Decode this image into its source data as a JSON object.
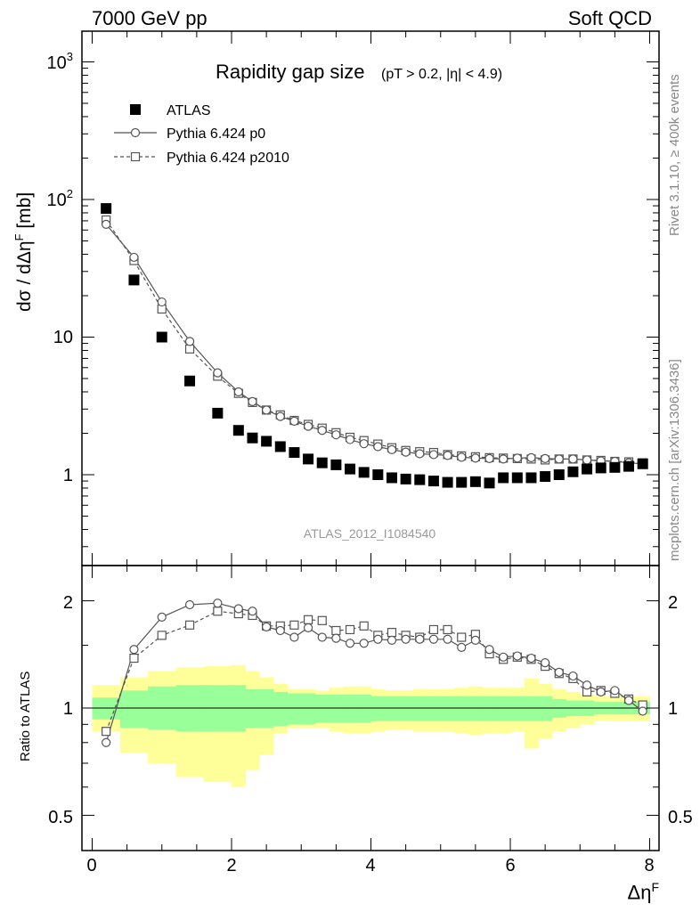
{
  "header": {
    "left": "7000 GeV pp",
    "right": "Soft QCD"
  },
  "side_texts": {
    "rivet": "Rivet 3.1.10, ≥ 400k events",
    "mcplots": "mcplots.cern.ch [arXiv:1306.3436]"
  },
  "chart_data": {
    "type": "scatter",
    "title_main": "Rapidity gap size",
    "title_cut": "(pT > 0.2, |η| < 4.9)",
    "analysis_label": "ATLAS_2012_I1084540",
    "ylabel": "dσ / dΔη",
    "ylabel_sup": "F",
    "ylabel_unit": " [mb]",
    "ratio_ylabel": "Ratio to ATLAS",
    "xlabel": "Δη",
    "xlabel_sup": "F",
    "xlim": [
      0,
      8
    ],
    "ylim": [
      0.2,
      1000
    ],
    "y_scale": "log",
    "ratio_ylim": [
      0.4,
      2.4
    ],
    "x_ticks": [
      "0",
      "2",
      "4",
      "6",
      "8"
    ],
    "y_ticks": [
      "1",
      "10"
    ],
    "y_tick_10e2_base": "10",
    "y_tick_10e2_exp": "2",
    "y_tick_10e3_base": "10",
    "y_tick_10e3_exp": "3",
    "ratio_y_ticks": [
      "0.5",
      "1",
      "2"
    ],
    "legend_position": "top-left",
    "legend": [
      "ATLAS",
      "Pythia 6.424 p0",
      "Pythia 6.424 p2010"
    ],
    "x": [
      0.2,
      0.6,
      1.0,
      1.4,
      1.8,
      2.1,
      2.3,
      2.5,
      2.7,
      2.9,
      3.1,
      3.3,
      3.5,
      3.7,
      3.9,
      4.1,
      4.3,
      4.5,
      4.7,
      4.9,
      5.1,
      5.3,
      5.5,
      5.7,
      5.9,
      6.1,
      6.3,
      6.5,
      6.7,
      6.9,
      7.1,
      7.3,
      7.5,
      7.7,
      7.9
    ],
    "series": [
      {
        "name": "ATLAS",
        "style": "black filled square",
        "values": [
          86,
          26,
          10,
          4.8,
          2.8,
          2.1,
          1.85,
          1.75,
          1.6,
          1.45,
          1.3,
          1.22,
          1.18,
          1.1,
          1.04,
          1.0,
          0.95,
          0.93,
          0.92,
          0.9,
          0.88,
          0.88,
          0.89,
          0.87,
          0.95,
          0.95,
          0.95,
          0.97,
          1.0,
          1.05,
          1.1,
          1.12,
          1.13,
          1.15,
          1.2
        ]
      },
      {
        "name": "Pythia 6.424 p0",
        "style": "solid line, open circle",
        "values": [
          66,
          38,
          18,
          9.3,
          5.5,
          4.0,
          3.4,
          2.95,
          2.65,
          2.45,
          2.25,
          2.1,
          1.95,
          1.8,
          1.68,
          1.6,
          1.52,
          1.46,
          1.42,
          1.4,
          1.38,
          1.34,
          1.32,
          1.31,
          1.3,
          1.32,
          1.33,
          1.31,
          1.3,
          1.3,
          1.28,
          1.26,
          1.25,
          1.22,
          1.2
        ]
      },
      {
        "name": "Pythia 6.424 p2010",
        "style": "dashed line, open square",
        "values": [
          71,
          36,
          16,
          8.2,
          5.2,
          3.9,
          3.35,
          2.95,
          2.72,
          2.48,
          2.32,
          2.18,
          2.02,
          1.87,
          1.77,
          1.67,
          1.57,
          1.5,
          1.47,
          1.45,
          1.4,
          1.37,
          1.35,
          1.33,
          1.32,
          1.31,
          1.3,
          1.28,
          1.3,
          1.3,
          1.28,
          1.27,
          1.25,
          1.24,
          1.22
        ]
      }
    ],
    "ratio": [
      {
        "name": "Pythia 6.424 p0",
        "values": [
          0.8,
          1.46,
          1.8,
          1.95,
          1.97,
          1.9,
          1.87,
          1.69,
          1.65,
          1.58,
          1.68,
          1.58,
          1.57,
          1.52,
          1.52,
          1.56,
          1.55,
          1.56,
          1.56,
          1.56,
          1.56,
          1.48,
          1.55,
          1.46,
          1.39,
          1.4,
          1.38,
          1.34,
          1.26,
          1.23,
          1.16,
          1.11,
          1.12,
          1.05,
          0.98
        ]
      },
      {
        "name": "Pythia 6.424 p2010",
        "values": [
          0.86,
          1.38,
          1.6,
          1.71,
          1.87,
          1.84,
          1.82,
          1.7,
          1.7,
          1.71,
          1.77,
          1.76,
          1.65,
          1.66,
          1.7,
          1.6,
          1.63,
          1.6,
          1.58,
          1.66,
          1.66,
          1.58,
          1.61,
          1.42,
          1.37,
          1.39,
          1.37,
          1.31,
          1.25,
          1.21,
          1.11,
          1.12,
          1.1,
          1.06,
          1.02
        ]
      }
    ],
    "ratio_bands": {
      "x_edges": [
        0,
        0.4,
        0.8,
        1.2,
        1.6,
        2.0,
        2.2,
        2.4,
        2.6,
        2.8,
        3.0,
        3.2,
        3.4,
        3.6,
        3.8,
        4.0,
        4.2,
        4.4,
        4.6,
        4.8,
        5.0,
        5.2,
        5.4,
        5.6,
        5.8,
        6.0,
        6.2,
        6.4,
        6.6,
        6.8,
        7.0,
        7.2,
        7.4,
        7.6,
        7.8,
        8.0
      ],
      "stat_lo": [
        0.93,
        0.88,
        0.87,
        0.86,
        0.86,
        0.86,
        0.88,
        0.88,
        0.89,
        0.9,
        0.9,
        0.91,
        0.91,
        0.91,
        0.91,
        0.92,
        0.92,
        0.92,
        0.92,
        0.92,
        0.92,
        0.92,
        0.92,
        0.92,
        0.92,
        0.92,
        0.92,
        0.92,
        0.94,
        0.95,
        0.95,
        0.96,
        0.96,
        0.96,
        0.96
      ],
      "stat_hi": [
        1.07,
        1.12,
        1.15,
        1.16,
        1.16,
        1.16,
        1.13,
        1.13,
        1.11,
        1.1,
        1.1,
        1.09,
        1.09,
        1.09,
        1.09,
        1.08,
        1.08,
        1.08,
        1.08,
        1.08,
        1.08,
        1.08,
        1.08,
        1.08,
        1.08,
        1.08,
        1.08,
        1.08,
        1.06,
        1.05,
        1.05,
        1.04,
        1.04,
        1.04,
        1.04
      ],
      "sys_lo": [
        0.86,
        0.75,
        0.7,
        0.64,
        0.62,
        0.6,
        0.67,
        0.74,
        0.85,
        0.88,
        0.88,
        0.88,
        0.86,
        0.85,
        0.85,
        0.86,
        0.87,
        0.87,
        0.86,
        0.86,
        0.86,
        0.85,
        0.84,
        0.85,
        0.85,
        0.86,
        0.77,
        0.82,
        0.86,
        0.88,
        0.9,
        0.92,
        0.92,
        0.92,
        0.92
      ],
      "sys_hi": [
        1.16,
        1.22,
        1.27,
        1.3,
        1.31,
        1.32,
        1.27,
        1.22,
        1.17,
        1.13,
        1.13,
        1.12,
        1.14,
        1.15,
        1.15,
        1.13,
        1.12,
        1.12,
        1.13,
        1.13,
        1.13,
        1.14,
        1.15,
        1.14,
        1.14,
        1.14,
        1.21,
        1.17,
        1.13,
        1.11,
        1.09,
        1.08,
        1.08,
        1.08,
        1.08
      ]
    },
    "colors": {
      "data": "#000000",
      "mc": "#555555",
      "stat_band": "#99ff99",
      "sys_band": "#ffff99",
      "side_text": "#888888"
    }
  }
}
